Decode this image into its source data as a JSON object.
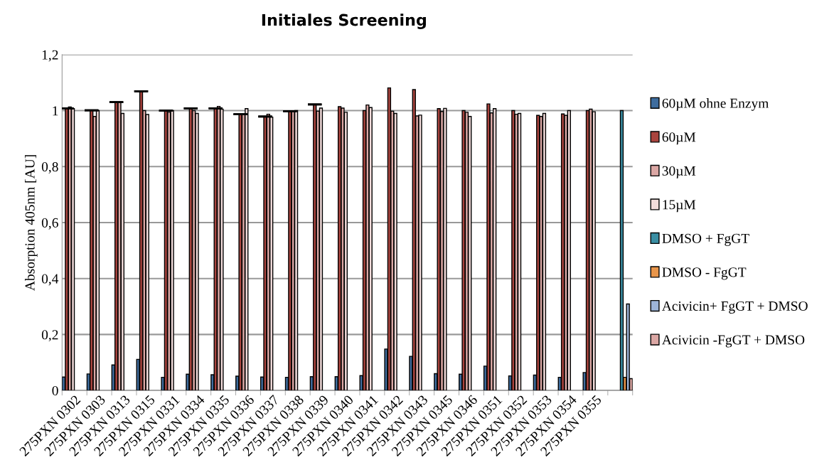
{
  "chart_data": {
    "type": "bar",
    "title": "Initiales Screening",
    "ylabel": "Absorption 405nm [AU]",
    "categories": [
      "275PXN 0302",
      "275PXN 0303",
      "275PXN 0313",
      "275PXN 0315",
      "275PXN 0331",
      "275PXN 0334",
      "275PXN 0335",
      "275PXN 0336",
      "275PXN 0337",
      "275PXN 0338",
      "275PXN 0339",
      "275PXN 0340",
      "275PXN 0341",
      "275PXN 0342",
      "275PXN 0343",
      "275PXN 0345",
      "275PXN 0346",
      "275PXN 0351",
      "275PXN 0352",
      "275PXN 0353",
      "275PXN 0354",
      "275PXN 0355",
      null
    ],
    "series": [
      {
        "name": "60µM ohne Enzym",
        "color": "#3f6d9e",
        "values": [
          0.048,
          0.059,
          0.091,
          0.111,
          0.047,
          0.058,
          0.056,
          0.051,
          0.048,
          0.047,
          0.049,
          0.049,
          0.053,
          0.148,
          0.122,
          0.06,
          0.058,
          0.087,
          0.052,
          0.055,
          0.047,
          0.064,
          null
        ]
      },
      {
        "name": "60µM",
        "color": "#a9443e",
        "values": [
          1.008,
          1.001,
          1.03,
          1.069,
          1.0,
          1.008,
          1.008,
          0.987,
          0.979,
          0.998,
          1.022,
          1.014,
          1.0,
          1.081,
          1.075,
          1.007,
          1.0,
          1.024,
          1.0,
          0.983,
          0.988,
          1.0,
          null
        ],
        "errors": [
          0,
          0,
          0,
          0,
          0,
          0,
          0,
          0,
          0,
          0,
          0,
          null,
          null,
          null,
          null,
          null,
          null,
          null,
          null,
          null,
          null,
          null,
          null
        ]
      },
      {
        "name": "30µM",
        "color": "#dba7a4",
        "values": [
          1.013,
          0.979,
          1.03,
          1.0,
          0.994,
          1.0,
          1.015,
          0.987,
          0.987,
          0.998,
          0.998,
          1.009,
          1.02,
          0.998,
          0.981,
          0.997,
          0.994,
          0.992,
          0.987,
          0.979,
          0.983,
          1.005,
          null
        ]
      },
      {
        "name": "15µM",
        "color": "#f2dcdb",
        "values": [
          1.007,
          1.0,
          0.99,
          0.986,
          1.0,
          0.99,
          1.005,
          1.007,
          0.977,
          1.0,
          1.009,
          0.994,
          1.011,
          0.99,
          0.984,
          1.008,
          0.979,
          1.007,
          0.99,
          0.99,
          1.0,
          0.996,
          null
        ]
      },
      {
        "name": "DMSO + FgGT",
        "color": "#3a8ea3",
        "values": [
          null,
          null,
          null,
          null,
          null,
          null,
          null,
          null,
          null,
          null,
          null,
          null,
          null,
          null,
          null,
          null,
          null,
          null,
          null,
          null,
          null,
          null,
          1.0
        ]
      },
      {
        "name": "DMSO - FgGT",
        "color": "#e8954a",
        "values": [
          null,
          null,
          null,
          null,
          null,
          null,
          null,
          null,
          null,
          null,
          null,
          null,
          null,
          null,
          null,
          null,
          null,
          null,
          null,
          null,
          null,
          null,
          0.047
        ]
      },
      {
        "name": "Acivicin+ FgGT + DMSO",
        "color": "#9db4d8",
        "values": [
          null,
          null,
          null,
          null,
          null,
          null,
          null,
          null,
          null,
          null,
          null,
          null,
          null,
          null,
          null,
          null,
          null,
          null,
          null,
          null,
          null,
          null,
          0.309
        ]
      },
      {
        "name": "Acivicin -FgGT + DMSO",
        "color": "#dba7a4",
        "values": [
          null,
          null,
          null,
          null,
          null,
          null,
          null,
          null,
          null,
          null,
          null,
          null,
          null,
          null,
          null,
          null,
          null,
          null,
          null,
          null,
          null,
          null,
          0.042
        ]
      }
    ],
    "ylim": [
      0,
      1.2
    ],
    "yticks": [
      0,
      {
        "value": 0.2,
        "label": "0,2"
      },
      {
        "value": 0.4,
        "label": "0,4"
      },
      {
        "value": 0.6,
        "label": "0,6"
      },
      {
        "value": 0.8,
        "label": "0,8"
      },
      1,
      {
        "value": 1.2,
        "label": "1,2"
      }
    ],
    "grid": "y",
    "legend": "right"
  }
}
